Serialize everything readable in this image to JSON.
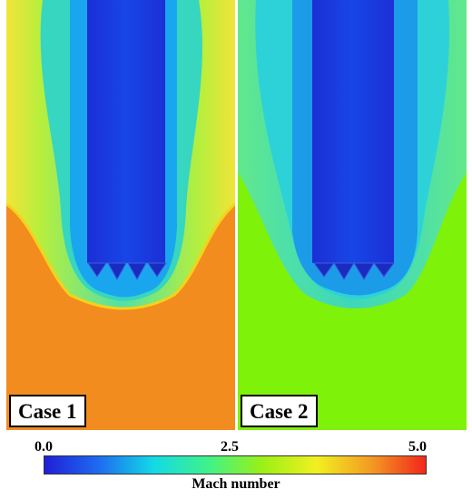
{
  "panels": [
    {
      "label": "Case 1",
      "free_stream_color": "#f28c1e"
    },
    {
      "label": "Case 2",
      "free_stream_color": "#7ff20a"
    }
  ],
  "colorbar": {
    "title": "Mach number",
    "ticks": [
      "0.0",
      "2.5",
      "5.0"
    ],
    "range": [
      0.0,
      5.0
    ],
    "colors": [
      "#1f1fd8",
      "#1e6cf0",
      "#13d9e6",
      "#3ff28a",
      "#9bf016",
      "#f2f020",
      "#f39a22",
      "#f2261a"
    ]
  }
}
